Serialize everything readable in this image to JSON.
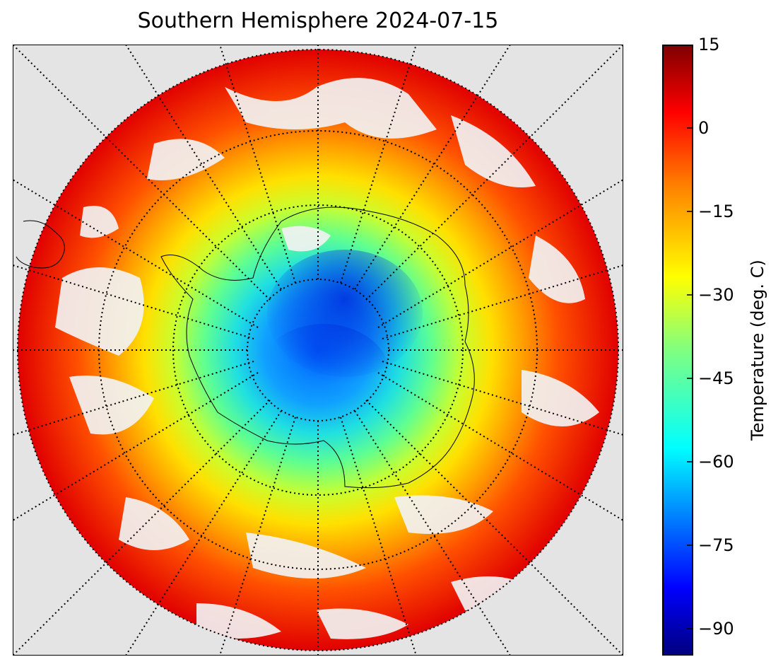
{
  "title": "Southern Hemisphere 2024-07-15",
  "colorbar": {
    "label": "Temperature (deg. C)",
    "ticks": [
      "15",
      "0",
      "−15",
      "−30",
      "−45",
      "−60",
      "−75",
      "−90"
    ],
    "range": [
      -95,
      15
    ],
    "colormap": "jet",
    "colormap_stops": [
      "#00007f",
      "#0000ff",
      "#0080ff",
      "#00ffff",
      "#80ff80",
      "#ffff00",
      "#ff8000",
      "#ff0000",
      "#7f0000"
    ]
  },
  "map": {
    "projection": "south-polar-stereographic",
    "background_color": "#e4e4e4",
    "graticule": "dotted",
    "coastlines": true,
    "cloud_color": "#f2f2f2"
  }
}
